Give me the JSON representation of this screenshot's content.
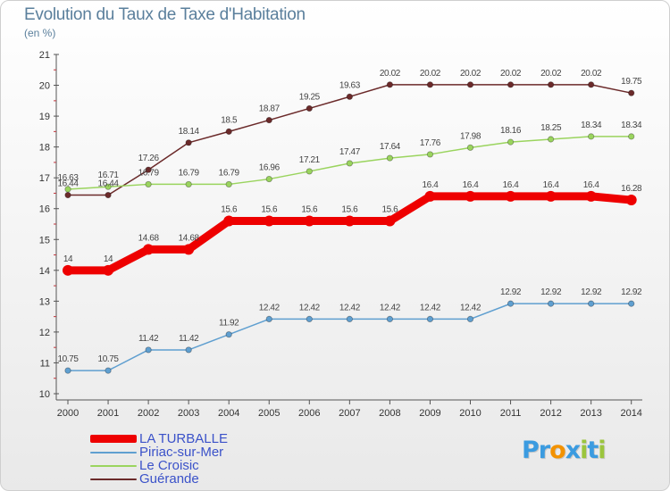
{
  "chart_data": {
    "type": "line",
    "title": "Evolution du Taux de Taxe d'Habitation",
    "subtitle": "(en %)",
    "x": [
      "2000",
      "2001",
      "2002",
      "2003",
      "2004",
      "2005",
      "2006",
      "2007",
      "2008",
      "2009",
      "2010",
      "2011",
      "2012",
      "2013",
      "2014"
    ],
    "ylim": [
      10,
      21
    ],
    "yticks": [
      10,
      11,
      12,
      13,
      14,
      15,
      16,
      17,
      18,
      19,
      20,
      21
    ],
    "series": [
      {
        "name": "LA TURBALLE",
        "color": "#ee0000",
        "labels": [
          "14",
          "14",
          "14.68",
          "14.68",
          "15.6",
          "15.6",
          "15.6",
          "15.6",
          "15.6",
          "16.4",
          "16.4",
          "16.4",
          "16.4",
          "16.4",
          "16.28"
        ],
        "values": [
          14,
          14,
          14.68,
          14.68,
          15.6,
          15.6,
          15.6,
          15.6,
          15.6,
          16.4,
          16.4,
          16.4,
          16.4,
          16.4,
          16.28
        ]
      },
      {
        "name": "Piriac-sur-Mer",
        "color": "#5f9fd0",
        "labels": [
          "10.75",
          "10.75",
          "11.42",
          "11.42",
          "11.92",
          "12.42",
          "12.42",
          "12.42",
          "12.42",
          "12.42",
          "12.42",
          "12.92",
          "12.92",
          "12.92",
          "12.92"
        ],
        "values": [
          10.75,
          10.75,
          11.42,
          11.42,
          11.92,
          12.42,
          12.42,
          12.42,
          12.42,
          12.42,
          12.42,
          12.92,
          12.92,
          12.92,
          12.92
        ]
      },
      {
        "name": "Le Croisic",
        "color": "#9ad45e",
        "labels": [
          "16.63",
          "16.71",
          "16.79",
          "16.79",
          "16.79",
          "16.96",
          "17.21",
          "17.47",
          "17.64",
          "17.76",
          "17.98",
          "18.16",
          "18.25",
          "18.34",
          "18.34"
        ],
        "values": [
          16.63,
          16.71,
          16.79,
          16.79,
          16.79,
          16.96,
          17.21,
          17.47,
          17.64,
          17.76,
          17.98,
          18.16,
          18.25,
          18.34,
          18.34
        ]
      },
      {
        "name": "Guérande",
        "color": "#6b2a2a",
        "labels": [
          "16.44",
          "16.44",
          "17.26",
          "18.14",
          "18.5",
          "18.87",
          "19.25",
          "19.63",
          "20.02",
          "20.02",
          "20.02",
          "20.02",
          "20.02",
          "20.02",
          "19.75"
        ],
        "values": [
          16.44,
          16.44,
          17.26,
          18.14,
          18.5,
          18.87,
          19.25,
          19.63,
          20.02,
          20.02,
          20.02,
          20.02,
          20.02,
          20.02,
          19.75
        ]
      }
    ],
    "legend_position": "bottom-left"
  },
  "brand": {
    "parts": [
      "P",
      "r",
      "o",
      "x",
      "i",
      "t",
      "i"
    ],
    "colors": [
      "#3b9be0",
      "#3b9be0",
      "#f39200",
      "#3b9be0",
      "#9bc53d",
      "#3b9be0",
      "#9bc53d"
    ]
  }
}
